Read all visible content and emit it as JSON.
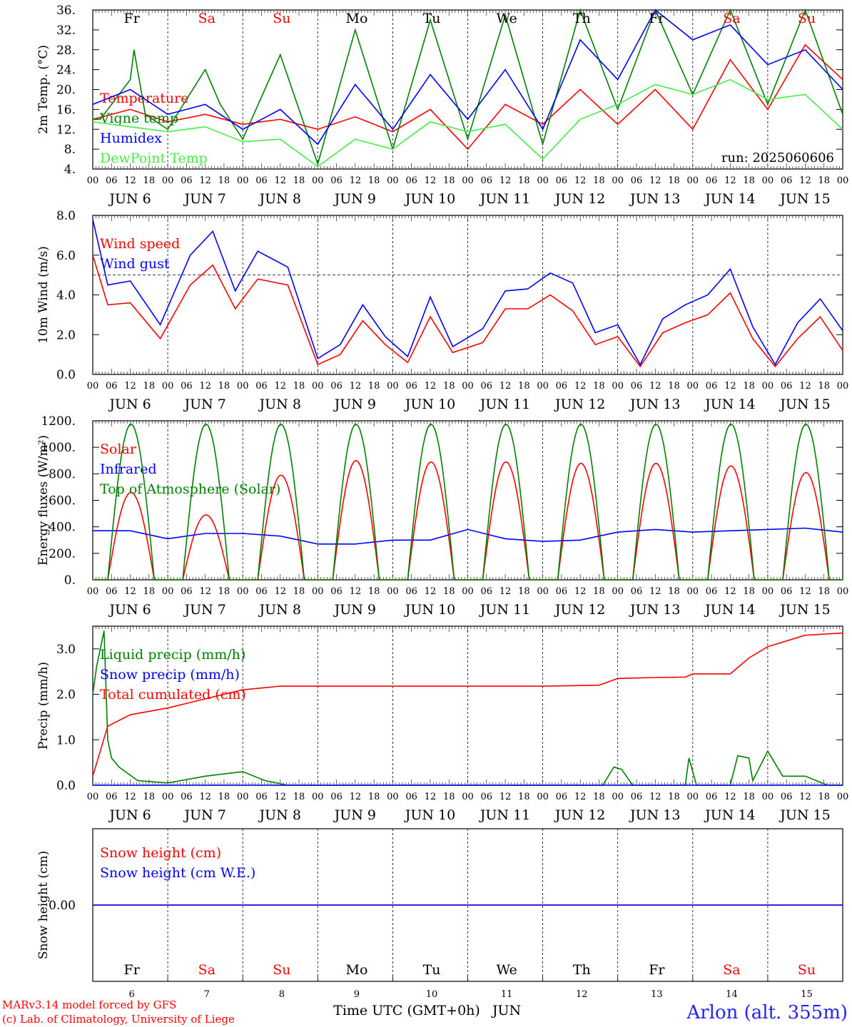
{
  "chart_data": [
    {
      "type": "line",
      "ylabel": "2m Temp. (°C)",
      "ylim": [
        4,
        36
      ],
      "yticks": [
        "4.",
        "8.",
        "12.",
        "16.",
        "20.",
        "24.",
        "28.",
        "32.",
        "36."
      ],
      "yvals": [
        4,
        8,
        12,
        16,
        20,
        24,
        28,
        32,
        36
      ],
      "annotation": "run: 2025060606",
      "series": [
        {
          "name": "Temperature",
          "color": "#ff0000",
          "x": [
            0,
            0.5,
            1,
            1.5,
            2,
            2.5,
            3,
            3.5,
            4,
            4.5,
            5,
            5.5,
            6,
            6.5,
            7,
            7.5,
            8,
            8.5,
            9,
            9.5,
            10
          ],
          "values": [
            14,
            16,
            13.5,
            15,
            13,
            14,
            12,
            14.5,
            11.5,
            16,
            8,
            17,
            13,
            20,
            13,
            20,
            12,
            26,
            16,
            29,
            22
          ]
        },
        {
          "name": "Vigne temp",
          "color": "#008000",
          "x": [
            0,
            0.1,
            0.5,
            0.55,
            0.7,
            1,
            1.5,
            1.7,
            2,
            2.5,
            3,
            3.5,
            4,
            4.5,
            5,
            5.5,
            6,
            6.5,
            7,
            7.5,
            8,
            8.5,
            9,
            9.5,
            10
          ],
          "values": [
            14,
            14,
            22,
            28,
            15,
            12,
            24,
            17,
            10,
            27,
            5,
            32,
            8,
            34,
            10,
            35,
            9,
            36,
            16,
            36,
            19,
            36,
            17,
            36,
            15
          ]
        },
        {
          "name": "Humidex",
          "color": "#0000ff",
          "x": [
            0,
            0.5,
            1,
            1.5,
            2,
            2.5,
            3,
            3.5,
            4,
            4.5,
            5,
            5.5,
            6,
            6.5,
            7,
            7.5,
            8,
            8.5,
            9,
            9.5,
            10
          ],
          "values": [
            17,
            20,
            15,
            17,
            12,
            16,
            9,
            21,
            12,
            23,
            14,
            24,
            12,
            30,
            22,
            36,
            30,
            33,
            25,
            28,
            20
          ]
        },
        {
          "name": "DewPoint Temp",
          "color": "#44ee44",
          "x": [
            0,
            0.5,
            1,
            1.5,
            2,
            2.5,
            3,
            3.5,
            4,
            4.5,
            5,
            5.5,
            6,
            6.5,
            7,
            7.5,
            8,
            8.5,
            9,
            9.5,
            10
          ],
          "values": [
            13.5,
            12.5,
            11.5,
            12.5,
            9.5,
            10,
            4.5,
            10,
            8,
            13.5,
            11.5,
            13,
            6,
            14,
            17,
            21,
            19,
            22,
            18,
            19,
            12
          ]
        }
      ]
    },
    {
      "type": "line",
      "ylabel": "10m Wind (m/s)",
      "ylim": [
        0,
        8
      ],
      "yticks": [
        "0.0",
        "2.0",
        "4.0",
        "6.0",
        "8.0"
      ],
      "yvals": [
        0,
        2,
        4,
        6,
        8
      ],
      "hline": 5,
      "series": [
        {
          "name": "Wind speed",
          "color": "#ff0000",
          "x": [
            0,
            0.2,
            0.5,
            0.9,
            1.3,
            1.6,
            1.9,
            2.2,
            2.6,
            3,
            3.3,
            3.6,
            3.9,
            4.2,
            4.5,
            4.8,
            5.2,
            5.5,
            5.8,
            6.1,
            6.4,
            6.7,
            7,
            7.3,
            7.6,
            7.9,
            8.2,
            8.5,
            8.8,
            9.1,
            9.4,
            9.7,
            10
          ],
          "values": [
            6,
            3.5,
            3.6,
            1.8,
            4.5,
            5.5,
            3.3,
            4.8,
            4.5,
            0.5,
            1,
            2.7,
            1.5,
            0.6,
            2.9,
            1.1,
            1.6,
            3.3,
            3.3,
            4,
            3.2,
            1.5,
            1.9,
            0.4,
            2.1,
            2.6,
            3,
            4.1,
            1.8,
            0.4,
            1.8,
            2.9,
            1.2
          ]
        },
        {
          "name": "Wind gust",
          "color": "#0000ff",
          "x": [
            0,
            0.2,
            0.5,
            0.9,
            1.3,
            1.6,
            1.9,
            2.2,
            2.6,
            3,
            3.3,
            3.6,
            3.9,
            4.2,
            4.5,
            4.8,
            5.2,
            5.5,
            5.8,
            6.1,
            6.4,
            6.7,
            7,
            7.3,
            7.6,
            7.9,
            8.2,
            8.5,
            8.8,
            9.1,
            9.4,
            9.7,
            10
          ],
          "values": [
            7.8,
            4.5,
            4.7,
            2.5,
            6,
            7.2,
            4.2,
            6.2,
            5.4,
            0.8,
            1.5,
            3.5,
            1.9,
            0.9,
            3.9,
            1.4,
            2.3,
            4.2,
            4.3,
            5.1,
            4.6,
            2.1,
            2.5,
            0.5,
            2.8,
            3.5,
            4,
            5.3,
            2.4,
            0.5,
            2.6,
            3.8,
            2.2
          ]
        }
      ]
    },
    {
      "type": "line",
      "ylabel": "Energy fluxes (W/m²)",
      "ylim": [
        0,
        1200
      ],
      "yticks": [
        "0.",
        "200.",
        "400.",
        "600.",
        "800.",
        "1000.",
        "1200."
      ],
      "yvals": [
        0,
        200,
        400,
        600,
        800,
        1000,
        1200
      ],
      "series": [
        {
          "name": "Solar",
          "color": "#ff0000",
          "daily_peak": [
            660,
            490,
            790,
            900,
            890,
            890,
            880,
            880,
            860,
            810
          ]
        },
        {
          "name": "Infrared",
          "color": "#0000ff",
          "x": [
            0,
            0.5,
            1,
            1.5,
            2,
            2.5,
            3,
            3.5,
            4,
            4.5,
            5,
            5.5,
            6,
            6.5,
            7,
            7.5,
            8,
            8.5,
            9,
            9.5,
            10
          ],
          "values": [
            370,
            370,
            310,
            350,
            350,
            330,
            270,
            270,
            300,
            300,
            380,
            310,
            290,
            300,
            360,
            380,
            360,
            370,
            380,
            390,
            360
          ]
        },
        {
          "name": "Top of Atmosphere (Solar)",
          "color": "#008000",
          "daily_peak": [
            1175,
            1175,
            1175,
            1175,
            1175,
            1175,
            1175,
            1175,
            1175,
            1175
          ]
        }
      ]
    },
    {
      "type": "line",
      "ylabel": "Precip (mm/h)",
      "ylim": [
        0,
        3.5
      ],
      "yticks": [
        "0.0",
        "1.0",
        "2.0",
        "3.0"
      ],
      "yvals": [
        0,
        1,
        2,
        3
      ],
      "series": [
        {
          "name": "Liquid precip (mm/h)",
          "color": "#008000",
          "x": [
            0,
            0.05,
            0.15,
            0.2,
            0.25,
            0.35,
            0.6,
            1,
            1.5,
            2,
            2.3,
            2.6,
            6.8,
            6.95,
            7.05,
            7.2,
            7.9,
            7.95,
            8.05,
            8.5,
            8.6,
            8.75,
            8.8,
            9,
            9.2,
            9.5,
            9.8,
            10
          ],
          "values": [
            2,
            2.6,
            3.4,
            1,
            0.6,
            0.4,
            0.1,
            0.05,
            0.2,
            0.3,
            0.1,
            0,
            0,
            0.4,
            0.35,
            0,
            0,
            0.6,
            0,
            0,
            0.65,
            0.6,
            0.1,
            0.75,
            0.2,
            0.2,
            0,
            0
          ]
        },
        {
          "name": "Snow precip (mm/h)",
          "color": "#0000ff",
          "x": [
            0,
            10
          ],
          "values": [
            0,
            0
          ]
        },
        {
          "name": "Total cumulated (cm)",
          "color": "#ff0000",
          "x": [
            0,
            0.2,
            0.5,
            1,
            1.5,
            2,
            2.5,
            3,
            4,
            5,
            6,
            6.75,
            7,
            7.5,
            7.9,
            8,
            8.5,
            8.75,
            9,
            9.5,
            10
          ],
          "values": [
            0.2,
            1.3,
            1.55,
            1.7,
            1.9,
            2.1,
            2.18,
            2.18,
            2.18,
            2.18,
            2.18,
            2.2,
            2.35,
            2.37,
            2.38,
            2.45,
            2.45,
            2.8,
            3.05,
            3.3,
            3.35
          ]
        }
      ]
    },
    {
      "type": "line",
      "ylabel": "Snow height (cm)",
      "ylim": [
        -1,
        1
      ],
      "yticks": [
        "0.00"
      ],
      "yvals": [
        0
      ],
      "series": [
        {
          "name": "Snow height (cm)",
          "color": "#ff0000",
          "x": [
            0,
            10
          ],
          "values": [
            0,
            0
          ]
        },
        {
          "name": "Snow height (cm W.E.)",
          "color": "#0000ff",
          "x": [
            0,
            10
          ],
          "values": [
            0,
            0
          ]
        }
      ]
    }
  ],
  "days": [
    "Fr",
    "Sa",
    "Su",
    "Mo",
    "Tu",
    "We",
    "Th",
    "Fr",
    "Sa",
    "Su"
  ],
  "day_colors": [
    "#000000",
    "#ff0000",
    "#ff0000",
    "#000000",
    "#000000",
    "#000000",
    "#000000",
    "#000000",
    "#ff0000",
    "#ff0000"
  ],
  "hour_ticks": [
    "00",
    "06",
    "12",
    "18"
  ],
  "hour_end": "00",
  "dates": [
    "JUN  6",
    "JUN  7",
    "JUN  8",
    "JUN  9",
    "JUN 10",
    "JUN 11",
    "JUN 12",
    "JUN 13",
    "JUN 14",
    "JUN 15"
  ],
  "bottom_dates": [
    "6",
    "7",
    "8",
    "9",
    "10",
    "11",
    "12",
    "13",
    "14",
    "15"
  ],
  "xlabel": "Time UTC (GMT+0h)",
  "xlabel_month": "JUN",
  "footer": {
    "credit_line1": "MARv3.14 model forced by GFS",
    "credit_line2": "(c) Lab. of Climatology, University of Liege",
    "station": "Arlon (alt. 355m)"
  }
}
